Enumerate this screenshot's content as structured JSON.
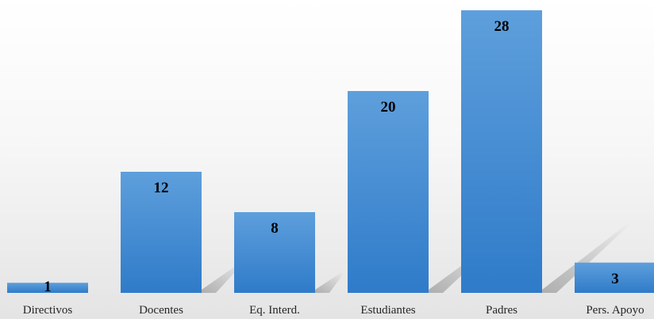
{
  "chart_data": {
    "type": "bar",
    "categories": [
      "Directivos",
      "Docentes",
      "Eq. Interd.",
      "Estudiantes",
      "Padres",
      "Pers. Apoyo"
    ],
    "values": [
      1,
      12,
      8,
      20,
      28,
      3
    ],
    "title": "",
    "xlabel": "",
    "ylabel": "",
    "ylim": [
      0,
      28
    ],
    "grid": false,
    "legend": "none",
    "data_labels": true
  },
  "colors": {
    "bar_top": "#5e9fdc",
    "bar_bottom": "#2f7bc9",
    "shadow": "#808080",
    "background_top": "#ffffff",
    "background_floor": "#e6e6e6"
  }
}
